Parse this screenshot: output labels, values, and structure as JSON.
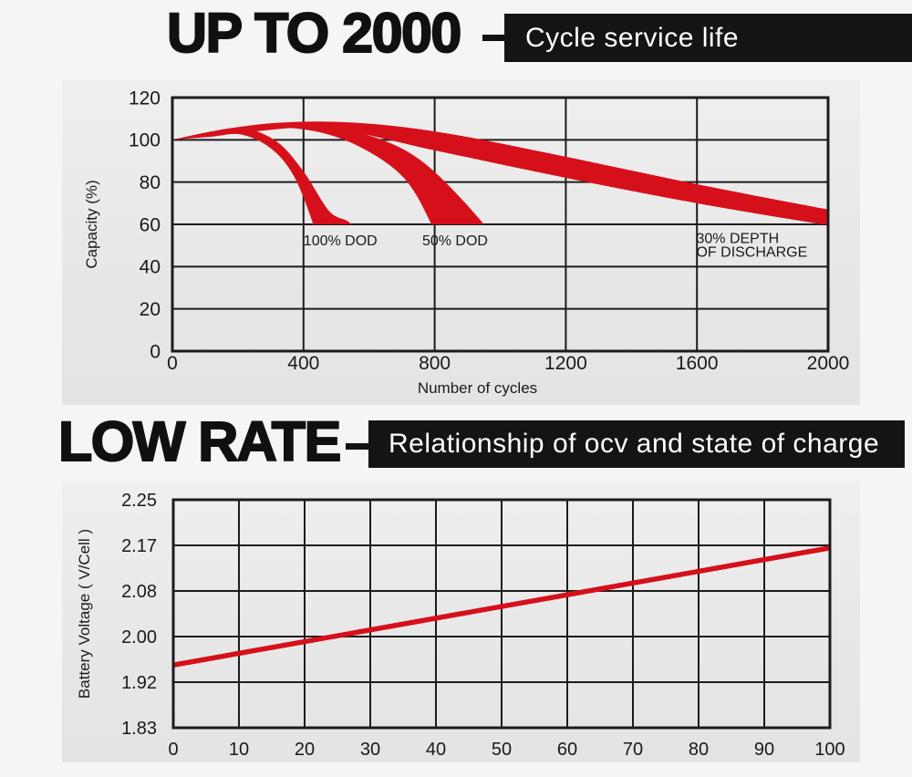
{
  "page": {
    "bg": "#f5f5f5",
    "panel_bg": "#e8e8e9",
    "grid_color": "#1c1c1c",
    "red": "#d6101b",
    "bar_bg": "#141414",
    "title_color": "#101010",
    "tag_text_color": "#ffffff"
  },
  "header1": {
    "title": "UP TO 2000",
    "tag": "Cycle service life"
  },
  "header2": {
    "title": "LOW RATE",
    "tag": "Relationship of ocv and state of charge"
  },
  "chart_data": [
    {
      "id": "cycle_life",
      "type": "area",
      "title": "Cycle service life",
      "xlabel": "Number of cycles",
      "ylabel": "Capacity (%)",
      "xlim": [
        0,
        2000
      ],
      "ylim": [
        0,
        120
      ],
      "xticks": [
        0,
        400,
        800,
        1200,
        1600,
        2000
      ],
      "yticks": [
        0,
        20,
        40,
        60,
        80,
        100,
        120
      ],
      "grid": true,
      "legend_position": "none",
      "band_clip_min_capacity": 60,
      "series": [
        {
          "name": "100% DOD",
          "top": [
            [
              0,
              100
            ],
            [
              120,
              104
            ],
            [
              220,
              105.5
            ],
            [
              320,
              99
            ],
            [
              400,
              85
            ],
            [
              480,
              66
            ],
            [
              545,
              60
            ],
            [
              580,
              45
            ]
          ],
          "bottom": [
            [
              0,
              100
            ],
            [
              120,
              101.5
            ],
            [
              210,
              102.5
            ],
            [
              300,
              96
            ],
            [
              370,
              83
            ],
            [
              430,
              60
            ],
            [
              455,
              45
            ]
          ]
        },
        {
          "name": "50% DOD",
          "top": [
            [
              0,
              100
            ],
            [
              200,
              106
            ],
            [
              380,
              108
            ],
            [
              580,
              103
            ],
            [
              760,
              90
            ],
            [
              950,
              60
            ],
            [
              1000,
              45
            ]
          ],
          "bottom": [
            [
              0,
              100
            ],
            [
              200,
              103.5
            ],
            [
              370,
              105.5
            ],
            [
              540,
              99
            ],
            [
              700,
              83
            ],
            [
              790,
              60
            ],
            [
              820,
              45
            ]
          ]
        },
        {
          "name": "30% DEPTH OF DISCHARGE",
          "top": [
            [
              0,
              100
            ],
            [
              250,
              107
            ],
            [
              500,
              108.5
            ],
            [
              800,
              104
            ],
            [
              1200,
              92
            ],
            [
              1600,
              79
            ],
            [
              2000,
              67
            ]
          ],
          "bottom": [
            [
              0,
              100
            ],
            [
              250,
              104
            ],
            [
              480,
              105.5
            ],
            [
              800,
              95
            ],
            [
              1200,
              82
            ],
            [
              1600,
              70
            ],
            [
              2000,
              59.5
            ]
          ]
        }
      ],
      "annotations": [
        {
          "text": "100% DOD",
          "x": 400,
          "y": 52.5
        },
        {
          "text": "50% DOD",
          "x": 762,
          "y": 52.5
        },
        {
          "text": "30% DEPTH",
          "x": 1598,
          "y": 53.5
        },
        {
          "text": "OF DISCHARGE",
          "x": 1598,
          "y": 47
        }
      ]
    },
    {
      "id": "ocv",
      "type": "line",
      "title": "Relationship of ocv and state of charge",
      "xlabel": "",
      "ylabel": "Battery Voltage ( V/Cell )",
      "xlim": [
        0,
        100
      ],
      "xticks": [
        0,
        10,
        20,
        30,
        40,
        50,
        60,
        70,
        80,
        90,
        100
      ],
      "ytick_labels": [
        "2.25",
        "2.17",
        "2.08",
        "2.00",
        "1.92",
        "1.83"
      ],
      "grid": true,
      "legend_position": "none",
      "line": {
        "x": [
          0,
          100
        ],
        "y": [
          1.95,
          2.165
        ]
      }
    }
  ]
}
